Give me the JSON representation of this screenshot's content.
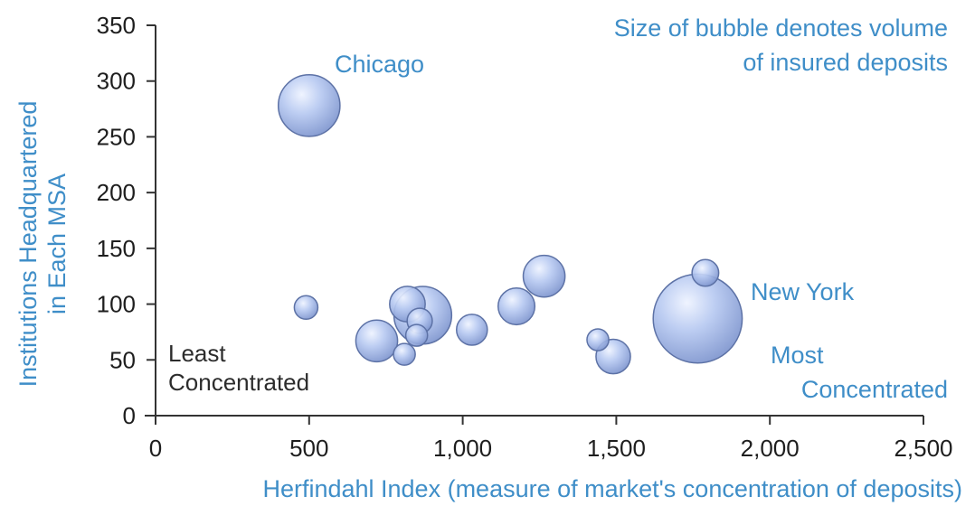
{
  "chart_data": {
    "type": "scatter",
    "title": "",
    "xlabel": "Herfindahl Index (measure of market's concentration of deposits)",
    "ylabel": [
      "Institutions Headquartered",
      "in Each MSA"
    ],
    "xlim": [
      0,
      2500
    ],
    "ylim": [
      0,
      350
    ],
    "x_ticks": [
      0,
      500,
      1000,
      1500,
      2000,
      2500
    ],
    "x_tick_labels": [
      "0",
      "500",
      "1,000",
      "1,500",
      "2,000",
      "2,500"
    ],
    "y_ticks": [
      0,
      50,
      100,
      150,
      200,
      250,
      300,
      350
    ],
    "y_tick_labels": [
      "0",
      "50",
      "100",
      "150",
      "200",
      "250",
      "300",
      "350"
    ],
    "grid": false,
    "size_note": [
      "Size of bubble denotes volume",
      "of insured deposits"
    ],
    "corner_labels": {
      "least": [
        "Least",
        "Concentrated"
      ],
      "most": [
        "Most",
        "Concentrated"
      ]
    },
    "points": [
      {
        "x": 500,
        "y": 278,
        "size": 2.4,
        "label": "Chicago"
      },
      {
        "x": 1765,
        "y": 87,
        "size": 5.0,
        "label": "New York"
      },
      {
        "x": 1790,
        "y": 128,
        "size": 0.45
      },
      {
        "x": 490,
        "y": 97,
        "size": 0.35
      },
      {
        "x": 720,
        "y": 67,
        "size": 1.1
      },
      {
        "x": 810,
        "y": 55,
        "size": 0.3
      },
      {
        "x": 820,
        "y": 100,
        "size": 0.8
      },
      {
        "x": 870,
        "y": 90,
        "size": 2.1
      },
      {
        "x": 860,
        "y": 85,
        "size": 0.4
      },
      {
        "x": 850,
        "y": 72,
        "size": 0.3
      },
      {
        "x": 1030,
        "y": 77,
        "size": 0.6
      },
      {
        "x": 1175,
        "y": 98,
        "size": 0.85
      },
      {
        "x": 1265,
        "y": 125,
        "size": 1.1
      },
      {
        "x": 1440,
        "y": 68,
        "size": 0.3
      },
      {
        "x": 1490,
        "y": 53,
        "size": 0.75
      }
    ]
  }
}
